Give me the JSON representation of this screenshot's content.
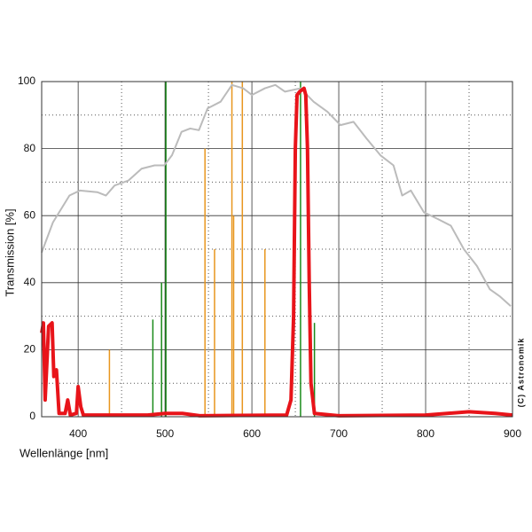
{
  "chart_data": {
    "type": "line",
    "y_label": "Transmission [%]",
    "x_label": "Wellenlänge [nm]",
    "credit": "(C) Astronomik",
    "xlim": [
      358,
      900
    ],
    "ylim": [
      0,
      100
    ],
    "xticks": [
      400,
      500,
      600,
      700,
      800,
      900
    ],
    "yticks": [
      0,
      20,
      40,
      60,
      80,
      100
    ],
    "x_minor_grid": [
      450,
      550,
      650,
      750,
      850
    ],
    "y_minor_grid": [
      10,
      30,
      50,
      70,
      90
    ],
    "grid": true,
    "series": [
      {
        "kind": "line",
        "color": "#bbbbbb",
        "width": 2,
        "x": [
          358,
          371,
          390,
          402,
          422,
          432,
          442,
          458,
          473,
          488,
          499,
          508,
          519,
          529,
          539,
          549,
          564,
          577,
          590,
          600,
          615,
          627,
          638,
          656,
          671,
          687,
          702,
          717,
          732,
          748,
          763,
          773,
          783,
          798,
          814,
          829,
          844,
          859,
          874,
          885,
          898
        ],
        "values": [
          49,
          58,
          66,
          67.5,
          67,
          66,
          69,
          70.5,
          74,
          75,
          75,
          78,
          85,
          86,
          85.5,
          92,
          94,
          99,
          98,
          96,
          98,
          99,
          97,
          98,
          94,
          91,
          87,
          88,
          83,
          78,
          75,
          66,
          67.5,
          61,
          59,
          57,
          50,
          45,
          38,
          36,
          33
        ]
      },
      {
        "kind": "line",
        "color": "#e8141a",
        "width": 4,
        "x": [
          358,
          360,
          362,
          366,
          370,
          372,
          375,
          378,
          385,
          388,
          391,
          398,
          400,
          403,
          406,
          480,
          500,
          520,
          540,
          640,
          645,
          648,
          650,
          652,
          655,
          660,
          662,
          664,
          666,
          668,
          672,
          700,
          800,
          850,
          880,
          900
        ],
        "values": [
          25,
          28,
          5,
          27,
          28,
          12,
          14,
          1,
          1,
          5,
          0.5,
          1,
          9,
          3,
          0.5,
          0.5,
          1,
          1,
          0.3,
          0.5,
          5,
          30,
          80,
          96,
          97,
          98,
          96,
          80,
          40,
          10,
          1,
          0.3,
          0.5,
          1.5,
          1,
          0.5
        ]
      },
      {
        "kind": "stem",
        "color": "#1a8a1a",
        "width": 1.5,
        "x": [
          486,
          496,
          501,
          656,
          672
        ],
        "values": [
          29,
          40,
          100,
          100,
          28
        ]
      },
      {
        "kind": "stem",
        "color": "#e8961e",
        "width": 1.5,
        "x": [
          436,
          546,
          557,
          577,
          579,
          589,
          615
        ],
        "values": [
          20,
          80,
          50,
          100,
          60,
          100,
          50
        ]
      }
    ]
  }
}
